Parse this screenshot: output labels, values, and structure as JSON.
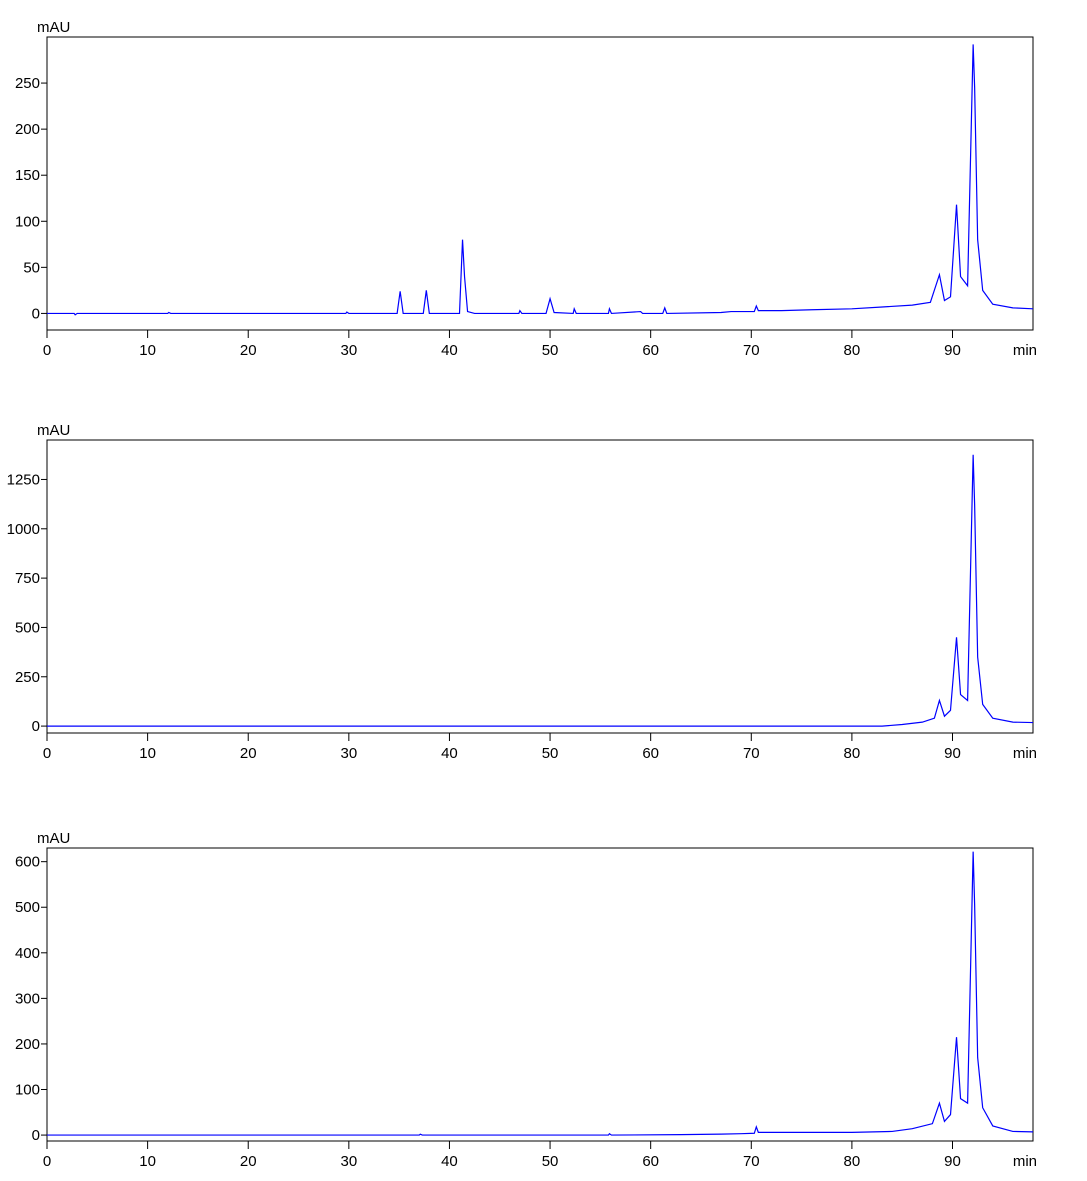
{
  "chart_data": [
    {
      "type": "line",
      "y_label": "mAU",
      "x_label": "min",
      "color": "#0000ff",
      "x": [
        0,
        2.7,
        2.8,
        3.0,
        12,
        12.1,
        12.3,
        29.7,
        29.8,
        30,
        34.8,
        35.1,
        35.4,
        37.4,
        37.7,
        38,
        41.0,
        41.3,
        41.5,
        41.8,
        42.5,
        46.9,
        47,
        47.2,
        49.6,
        50,
        50.4,
        52.3,
        52.4,
        52.6,
        55.8,
        55.9,
        56.1,
        59,
        59.2,
        61.2,
        61.4,
        61.6,
        67,
        68,
        69,
        70.3,
        70.5,
        70.7,
        73,
        76,
        80,
        83,
        86,
        87.8,
        88.7,
        89.2,
        89.8,
        90.4,
        90.8,
        91.5,
        92.05,
        92.2,
        92.5,
        93,
        94,
        96,
        98
      ],
      "values": [
        0,
        0,
        -1.5,
        0,
        0,
        1,
        0,
        0,
        1.5,
        0,
        0,
        24,
        0,
        0,
        25,
        0,
        0,
        80,
        40,
        2,
        0,
        0,
        3,
        0,
        0,
        16,
        1,
        0,
        5,
        0,
        0,
        5,
        0,
        2,
        0,
        0,
        6,
        0,
        1,
        2,
        2,
        2,
        8,
        3,
        3,
        4,
        5,
        7,
        9,
        12,
        42,
        14,
        18,
        118,
        40,
        30,
        292,
        245,
        80,
        25,
        10,
        6,
        5
      ],
      "xlim": [
        0,
        98
      ],
      "ylim": [
        -18,
        300
      ],
      "xticks": [
        0,
        10,
        20,
        30,
        40,
        50,
        60,
        70,
        80,
        90
      ],
      "yticks": [
        0,
        50,
        100,
        150,
        200,
        250
      ]
    },
    {
      "type": "line",
      "y_label": "mAU",
      "x_label": "min",
      "color": "#0000ff",
      "x": [
        0,
        83,
        85,
        87,
        88.2,
        88.7,
        89.2,
        89.8,
        90.4,
        90.8,
        91.5,
        92.05,
        92.2,
        92.5,
        93,
        94,
        96,
        98
      ],
      "values": [
        0,
        0,
        8,
        20,
        40,
        130,
        50,
        80,
        450,
        160,
        130,
        1375,
        1120,
        350,
        110,
        40,
        20,
        18
      ],
      "xlim": [
        0,
        98
      ],
      "ylim": [
        -35,
        1450
      ],
      "xticks": [
        0,
        10,
        20,
        30,
        40,
        50,
        60,
        70,
        80,
        90
      ],
      "yticks": [
        0,
        250,
        500,
        750,
        1000,
        1250
      ]
    },
    {
      "type": "line",
      "y_label": "mAU",
      "x_label": "min",
      "color": "#0000ff",
      "x": [
        0,
        37,
        37.1,
        37.3,
        55.8,
        55.9,
        56.1,
        63,
        67,
        69,
        70.3,
        70.5,
        70.7,
        80,
        84,
        86,
        88,
        88.7,
        89.2,
        89.8,
        90.4,
        90.8,
        91.5,
        92.05,
        92.2,
        92.5,
        93,
        94,
        96,
        98
      ],
      "values": [
        0,
        0,
        2,
        0,
        0,
        3,
        0,
        1,
        2,
        3,
        4,
        18,
        6,
        6,
        8,
        14,
        25,
        70,
        30,
        45,
        215,
        80,
        70,
        622,
        505,
        170,
        60,
        20,
        8,
        7
      ],
      "xlim": [
        0,
        98
      ],
      "ylim": [
        -13,
        630
      ],
      "xticks": [
        0,
        10,
        20,
        30,
        40,
        50,
        60,
        70,
        80,
        90
      ],
      "yticks": [
        0,
        100,
        200,
        300,
        400,
        500,
        600
      ]
    }
  ]
}
